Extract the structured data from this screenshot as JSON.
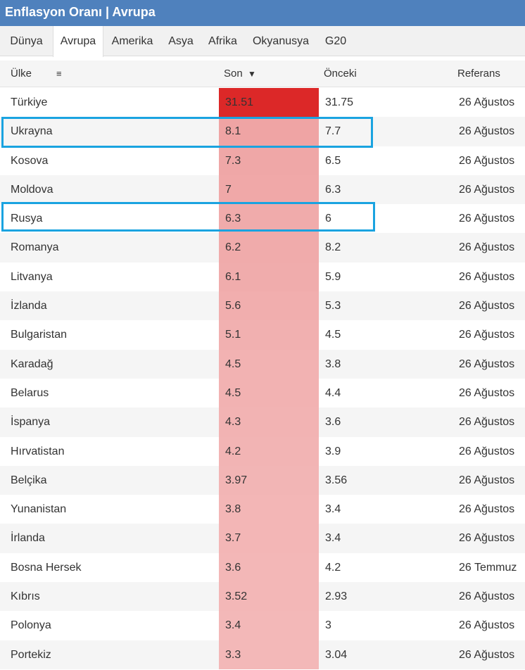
{
  "title": "Enflasyon Oranı | Avrupa",
  "tabs": [
    {
      "label": "Dünya",
      "active": false
    },
    {
      "label": "Avrupa",
      "active": true
    },
    {
      "label": "Amerika",
      "active": false
    },
    {
      "label": "Asya",
      "active": false
    },
    {
      "label": "Afrika",
      "active": false
    },
    {
      "label": "Okyanusya",
      "active": false
    },
    {
      "label": "G20",
      "active": false
    }
  ],
  "table": {
    "headers": {
      "country": "Ülke",
      "country_menu_icon": "≡",
      "son": "Son",
      "son_sort_icon": "▼",
      "prev": "Önceki",
      "ref": "Referans"
    },
    "rows": [
      {
        "country": "Türkiye",
        "son": "31.51",
        "prev": "31.75",
        "ref": "26 Ağustos",
        "heat": "#dc2828"
      },
      {
        "country": "Ukrayna",
        "son": "8.1",
        "prev": "7.7",
        "ref": "26 Ağustos",
        "heat": "#efa4a4"
      },
      {
        "country": "Kosova",
        "son": "7.3",
        "prev": "6.5",
        "ref": "26 Ağustos",
        "heat": "#efa7a7"
      },
      {
        "country": "Moldova",
        "son": "7",
        "prev": "6.3",
        "ref": "26 Ağustos",
        "heat": "#f0a8a8"
      },
      {
        "country": "Rusya",
        "son": "6.3",
        "prev": "6",
        "ref": "26 Ağustos",
        "heat": "#f0abab"
      },
      {
        "country": "Romanya",
        "son": "6.2",
        "prev": "8.2",
        "ref": "26 Ağustos",
        "heat": "#f0abab"
      },
      {
        "country": "Litvanya",
        "son": "6.1",
        "prev": "5.9",
        "ref": "26 Ağustos",
        "heat": "#f0acac"
      },
      {
        "country": "İzlanda",
        "son": "5.6",
        "prev": "5.3",
        "ref": "26 Ağustos",
        "heat": "#f1aeae"
      },
      {
        "country": "Bulgaristan",
        "son": "5.1",
        "prev": "4.5",
        "ref": "26 Ağustos",
        "heat": "#f1b0b0"
      },
      {
        "country": "Karadağ",
        "son": "4.5",
        "prev": "3.8",
        "ref": "26 Ağustos",
        "heat": "#f2b2b2"
      },
      {
        "country": "Belarus",
        "son": "4.5",
        "prev": "4.4",
        "ref": "26 Ağustos",
        "heat": "#f2b2b2"
      },
      {
        "country": "İspanya",
        "son": "4.3",
        "prev": "3.6",
        "ref": "26 Ağustos",
        "heat": "#f2b3b3"
      },
      {
        "country": "Hırvatistan",
        "son": "4.2",
        "prev": "3.9",
        "ref": "26 Ağustos",
        "heat": "#f2b4b4"
      },
      {
        "country": "Belçika",
        "son": "3.97",
        "prev": "3.56",
        "ref": "26 Ağustos",
        "heat": "#f2b5b5"
      },
      {
        "country": "Yunanistan",
        "son": "3.8",
        "prev": "3.4",
        "ref": "26 Ağustos",
        "heat": "#f3b6b6"
      },
      {
        "country": "İrlanda",
        "son": "3.7",
        "prev": "3.4",
        "ref": "26 Ağustos",
        "heat": "#f3b6b6"
      },
      {
        "country": "Bosna Hersek",
        "son": "3.6",
        "prev": "4.2",
        "ref": "26 Temmuz",
        "heat": "#f3b7b7"
      },
      {
        "country": "Kıbrıs",
        "son": "3.52",
        "prev": "2.93",
        "ref": "26 Ağustos",
        "heat": "#f3b7b7"
      },
      {
        "country": "Polonya",
        "son": "3.4",
        "prev": "3",
        "ref": "26 Ağustos",
        "heat": "#f3b8b8"
      },
      {
        "country": "Portekiz",
        "son": "3.3",
        "prev": "3.04",
        "ref": "26 Ağustos",
        "heat": "#f3b8b8"
      }
    ]
  },
  "highlighted_countries": [
    "Ukrayna",
    "Rusya"
  ],
  "colors": {
    "title_bar": "#4f81bd",
    "highlight_border": "#1aa3e0",
    "max_heat": "#dc2828"
  }
}
